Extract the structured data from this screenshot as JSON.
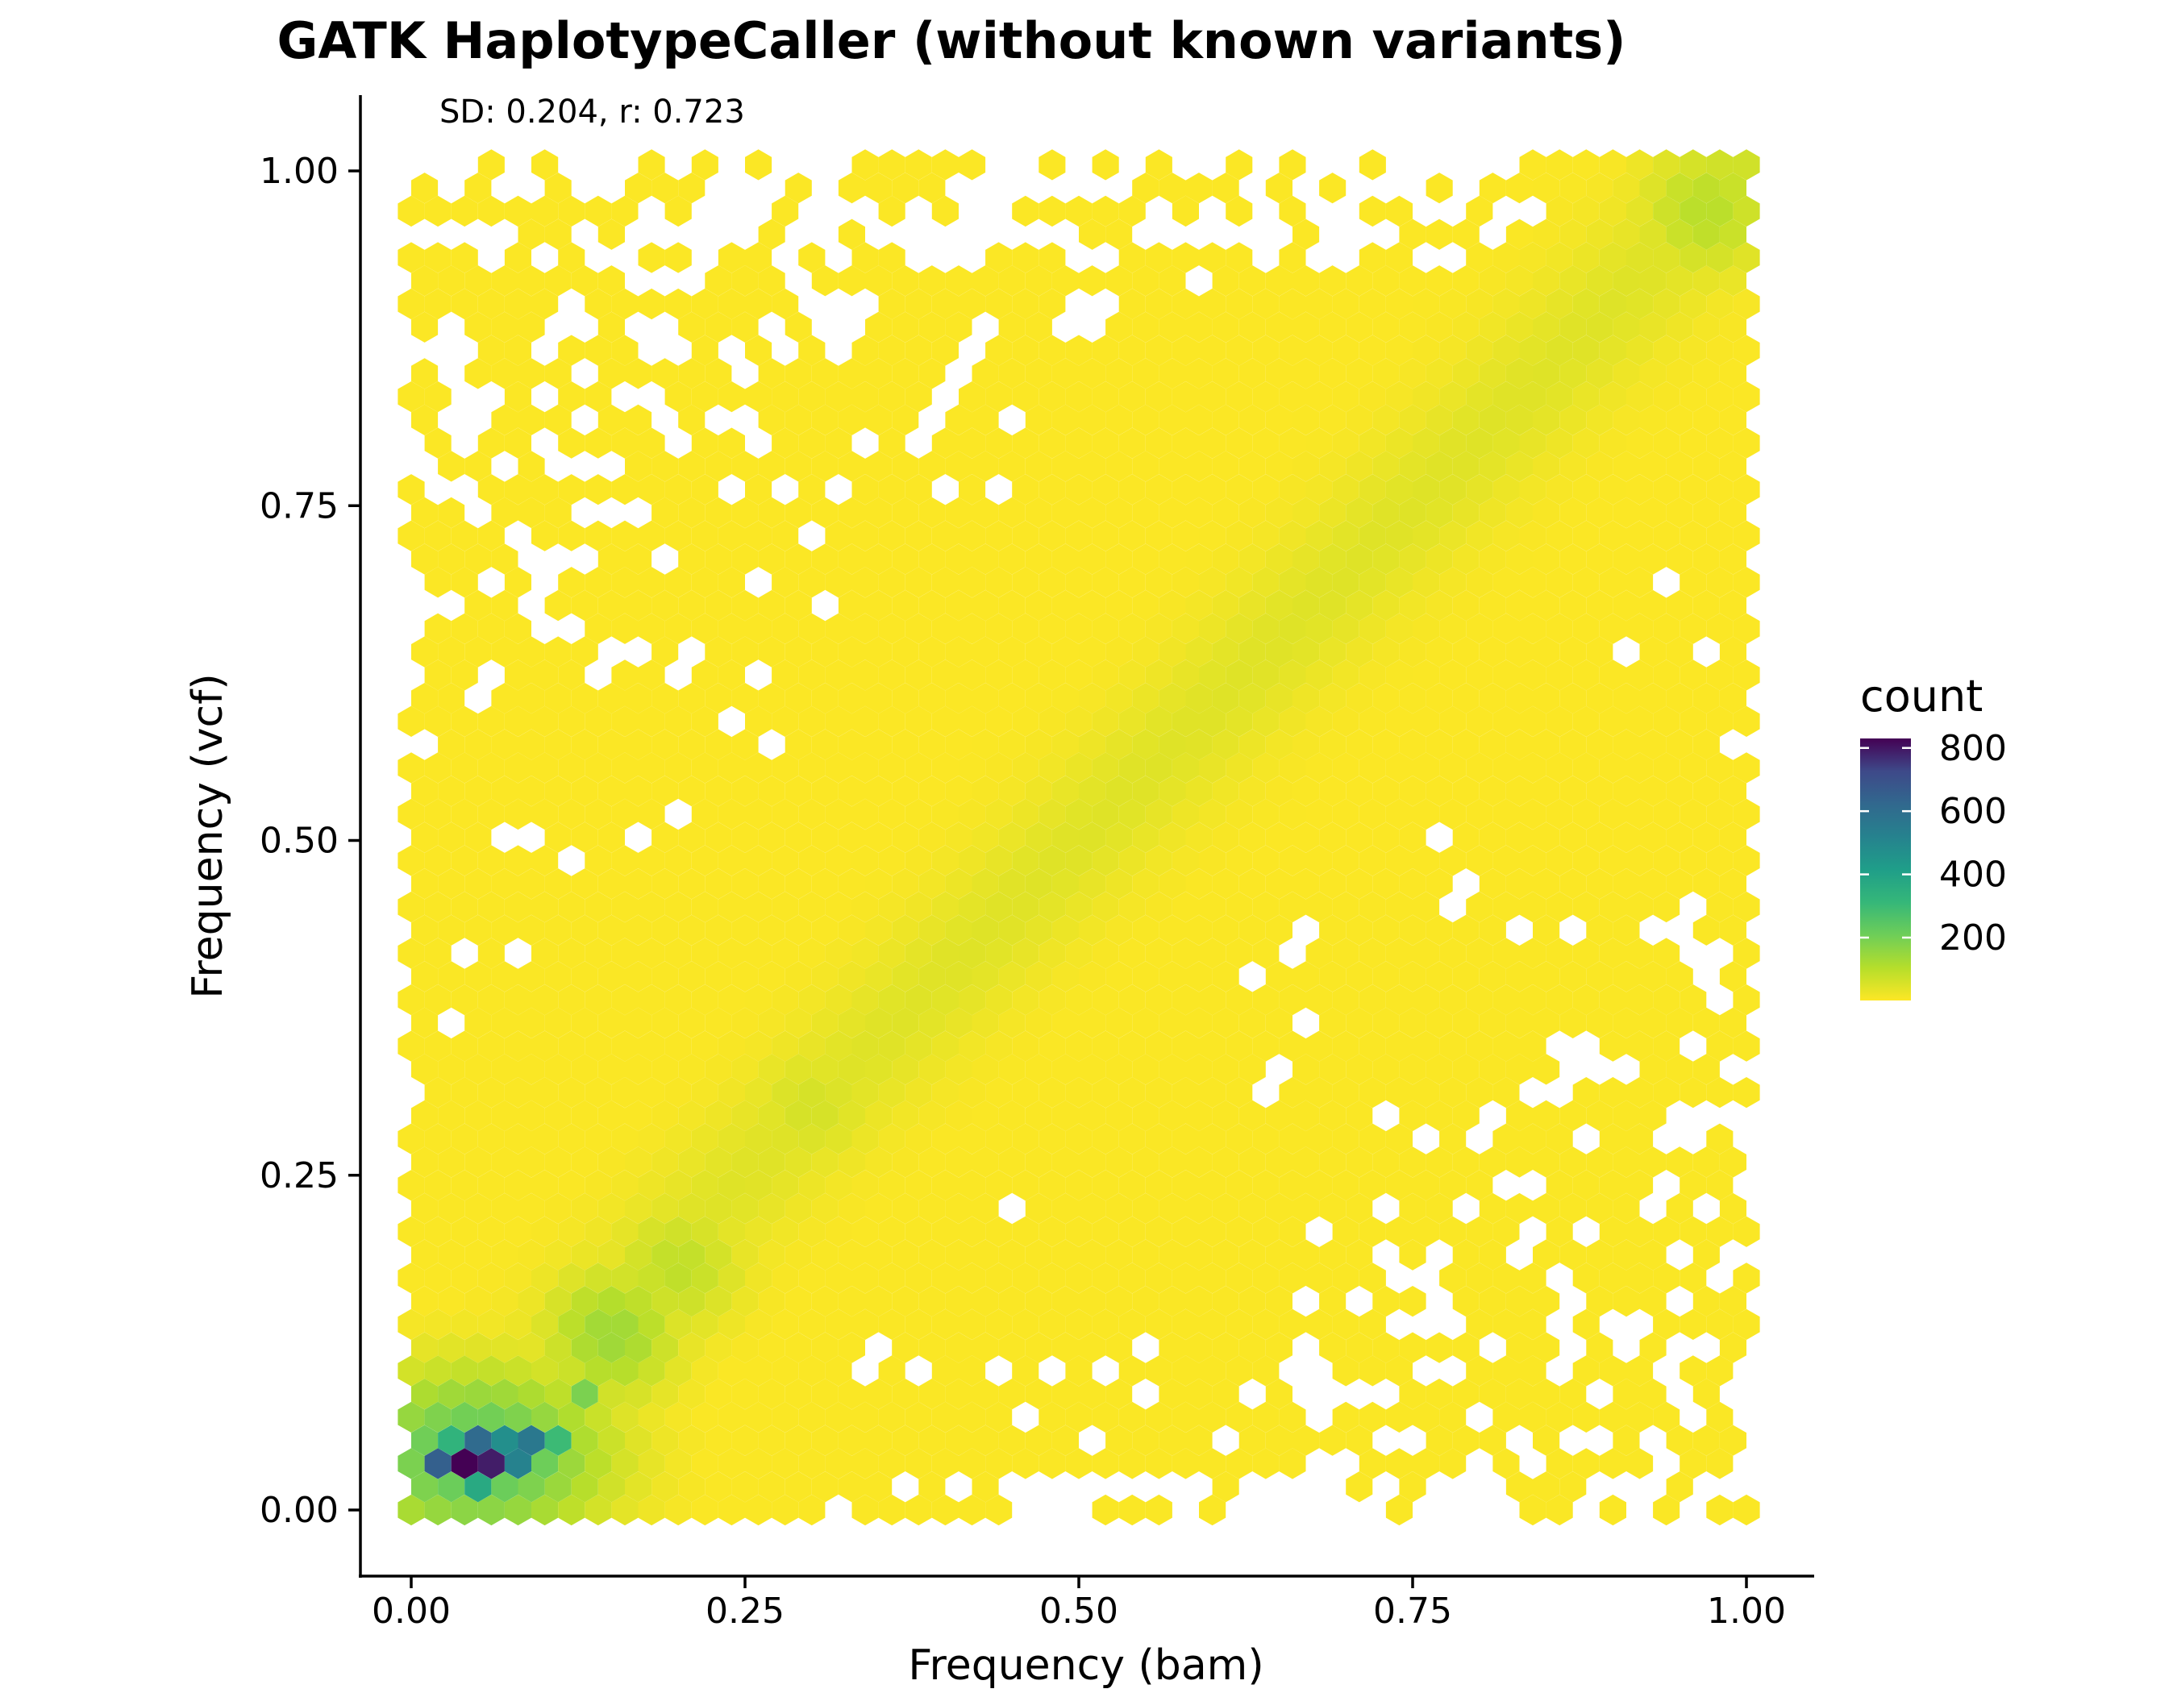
{
  "chart_data": {
    "type": "hexbin",
    "title": "GATK HaplotypeCaller (without known variants)",
    "annotation": "SD: 0.204, r: 0.723",
    "xlabel": "Frequency (bam)",
    "ylabel": "Frequency (vcf)",
    "xlim": [
      -0.04,
      1.04
    ],
    "ylim": [
      -0.05,
      1.055
    ],
    "x_ticks": [
      0.0,
      0.25,
      0.5,
      0.75,
      1.0
    ],
    "x_tick_labels": [
      "0.00",
      "0.25",
      "0.50",
      "0.75",
      "1.00"
    ],
    "y_ticks": [
      0.0,
      0.25,
      0.5,
      0.75,
      1.0
    ],
    "y_tick_labels": [
      "0.00",
      "0.25",
      "0.50",
      "0.75",
      "1.00"
    ],
    "grid": false,
    "legend": {
      "title": "count",
      "position": "right",
      "colormap": "viridis (reversed: high = dark purple, low = yellow)",
      "range": [
        1,
        830
      ],
      "ticks": [
        200,
        400,
        600,
        800
      ],
      "tick_labels": [
        "200",
        "400",
        "600",
        "800"
      ]
    },
    "bin_width": 0.02,
    "data_extent": {
      "x": [
        0.0,
        1.0
      ],
      "y": [
        0.0,
        1.0
      ]
    },
    "density_hotspots": [
      {
        "x": 0.04,
        "y": 0.035,
        "count": 830
      },
      {
        "x": 0.06,
        "y": 0.035,
        "count": 790
      },
      {
        "x": 0.02,
        "y": 0.035,
        "count": 650
      },
      {
        "x": 0.05,
        "y": 0.052,
        "count": 610
      },
      {
        "x": 0.09,
        "y": 0.052,
        "count": 560
      },
      {
        "x": 0.08,
        "y": 0.035,
        "count": 520
      },
      {
        "x": 0.07,
        "y": 0.052,
        "count": 470
      },
      {
        "x": 0.09,
        "y": 0.07,
        "count": 390
      },
      {
        "x": 0.05,
        "y": 0.017,
        "count": 370
      },
      {
        "x": 0.03,
        "y": 0.052,
        "count": 330
      },
      {
        "x": 0.11,
        "y": 0.052,
        "count": 300
      },
      {
        "x": 0.11,
        "y": 0.07,
        "count": 270
      },
      {
        "x": 0.1,
        "y": 0.035,
        "count": 210
      },
      {
        "x": 0.13,
        "y": 0.087,
        "count": 190
      }
    ],
    "diagonal_ridge": [
      {
        "x": 0.15,
        "y": 0.13,
        "count": 140
      },
      {
        "x": 0.2,
        "y": 0.18,
        "count": 90
      },
      {
        "x": 0.3,
        "y": 0.3,
        "count": 60
      },
      {
        "x": 0.45,
        "y": 0.45,
        "count": 45
      },
      {
        "x": 0.6,
        "y": 0.6,
        "count": 35
      },
      {
        "x": 0.75,
        "y": 0.75,
        "count": 30
      },
      {
        "x": 0.9,
        "y": 0.9,
        "count": 45
      },
      {
        "x": 0.97,
        "y": 0.97,
        "count": 100
      },
      {
        "x": 0.99,
        "y": 0.99,
        "count": 75
      }
    ]
  },
  "colors": {
    "viridis_high": "#440154",
    "viridis_mid": "#21918c",
    "viridis_low": "#fde725"
  }
}
